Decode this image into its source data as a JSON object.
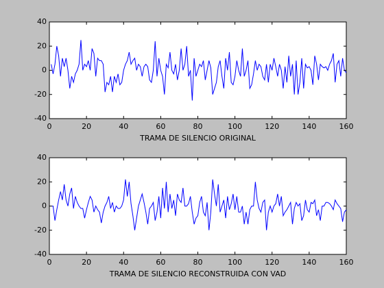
{
  "chart_data": [
    {
      "type": "line",
      "xlabel": "TRAMA DE SILENCIO ORIGINAL",
      "x": [
        1,
        2,
        3,
        4,
        5,
        6,
        7,
        8,
        9,
        10,
        11,
        12,
        13,
        14,
        15,
        16,
        17,
        18,
        19,
        20,
        21,
        22,
        23,
        24,
        25,
        26,
        27,
        28,
        29,
        30,
        31,
        32,
        33,
        34,
        35,
        36,
        37,
        38,
        39,
        40,
        41,
        42,
        43,
        44,
        45,
        46,
        47,
        48,
        49,
        50,
        51,
        52,
        53,
        54,
        55,
        56,
        57,
        58,
        59,
        60,
        61,
        62,
        63,
        64,
        65,
        66,
        67,
        68,
        69,
        70,
        71,
        72,
        73,
        74,
        75,
        76,
        77,
        78,
        79,
        80,
        81,
        82,
        83,
        84,
        85,
        86,
        87,
        88,
        89,
        90,
        91,
        92,
        93,
        94,
        95,
        96,
        97,
        98,
        99,
        100,
        101,
        102,
        103,
        104,
        105,
        106,
        107,
        108,
        109,
        110,
        111,
        112,
        113,
        114,
        115,
        116,
        117,
        118,
        119,
        120,
        121,
        122,
        123,
        124,
        125,
        126,
        127,
        128,
        129,
        130,
        131,
        132,
        133,
        134,
        135,
        136,
        137,
        138,
        139,
        140,
        141,
        142,
        143,
        144,
        145,
        146,
        147,
        148,
        149,
        150,
        151,
        152,
        153,
        154,
        155,
        156,
        157,
        158,
        159,
        160
      ],
      "series": [
        {
          "color": "#0000ff",
          "values": [
            5,
            -3,
            5,
            20,
            12,
            -5,
            10,
            3,
            10,
            0,
            -15,
            -5,
            -10,
            -3,
            0,
            5,
            25,
            0,
            5,
            3,
            8,
            0,
            18,
            14,
            -5,
            10,
            8,
            8,
            5,
            -18,
            -10,
            -12,
            -5,
            -18,
            -5,
            -10,
            -3,
            -12,
            -10,
            0,
            5,
            8,
            15,
            5,
            8,
            10,
            0,
            5,
            3,
            -5,
            3,
            5,
            3,
            -8,
            -10,
            0,
            24,
            -5,
            10,
            0,
            -5,
            -20,
            5,
            2,
            15,
            0,
            -3,
            5,
            -8,
            0,
            18,
            0,
            5,
            20,
            -5,
            0,
            -25,
            10,
            -5,
            0,
            5,
            3,
            8,
            -8,
            0,
            8,
            2,
            -20,
            -15,
            -10,
            3,
            8,
            -5,
            -15,
            10,
            0,
            15,
            -10,
            -12,
            -5,
            8,
            0,
            -5,
            18,
            -5,
            0,
            8,
            -15,
            -12,
            -3,
            8,
            0,
            5,
            3,
            -5,
            -8,
            5,
            -10,
            5,
            0,
            10,
            3,
            -5,
            5,
            0,
            -15,
            3,
            -10,
            12,
            -5,
            5,
            -20,
            8,
            -20,
            -10,
            10,
            -15,
            5,
            2,
            3,
            0,
            -12,
            12,
            5,
            -8,
            5,
            3,
            2,
            3,
            0,
            5,
            8,
            14,
            -10,
            5,
            8,
            -5,
            10,
            0,
            -2
          ]
        }
      ],
      "xlim": [
        0,
        160
      ],
      "xticks": [
        0,
        20,
        40,
        60,
        80,
        100,
        120,
        140,
        160
      ],
      "ylim": [
        -40,
        40
      ],
      "yticks": [
        -40,
        -20,
        0,
        20,
        40
      ]
    },
    {
      "type": "line",
      "xlabel": "TRAMA DE SILENCIO RECONSTRUIDA CON VAD",
      "x": [
        1,
        2,
        3,
        4,
        5,
        6,
        7,
        8,
        9,
        10,
        11,
        12,
        13,
        14,
        15,
        16,
        17,
        18,
        19,
        20,
        21,
        22,
        23,
        24,
        25,
        26,
        27,
        28,
        29,
        30,
        31,
        32,
        33,
        34,
        35,
        36,
        37,
        38,
        39,
        40,
        41,
        42,
        43,
        44,
        45,
        46,
        47,
        48,
        49,
        50,
        51,
        52,
        53,
        54,
        55,
        56,
        57,
        58,
        59,
        60,
        61,
        62,
        63,
        64,
        65,
        66,
        67,
        68,
        69,
        70,
        71,
        72,
        73,
        74,
        75,
        76,
        77,
        78,
        79,
        80,
        81,
        82,
        83,
        84,
        85,
        86,
        87,
        88,
        89,
        90,
        91,
        92,
        93,
        94,
        95,
        96,
        97,
        98,
        99,
        100,
        101,
        102,
        103,
        104,
        105,
        106,
        107,
        108,
        109,
        110,
        111,
        112,
        113,
        114,
        115,
        116,
        117,
        118,
        119,
        120,
        121,
        122,
        123,
        124,
        125,
        126,
        127,
        128,
        129,
        130,
        131,
        132,
        133,
        134,
        135,
        136,
        137,
        138,
        139,
        140,
        141,
        142,
        143,
        144,
        145,
        146,
        147,
        148,
        149,
        150,
        151,
        152,
        153,
        154,
        155,
        156,
        157,
        158,
        159,
        160
      ],
      "series": [
        {
          "color": "#0000ff",
          "values": [
            0,
            0,
            -12,
            -3,
            5,
            12,
            5,
            18,
            5,
            0,
            10,
            15,
            -2,
            8,
            3,
            0,
            -2,
            -2,
            -10,
            -3,
            3,
            8,
            5,
            -5,
            0,
            -3,
            -5,
            -14,
            -5,
            0,
            3,
            8,
            -2,
            3,
            -5,
            0,
            -2,
            -2,
            0,
            5,
            22,
            8,
            20,
            2,
            -8,
            -20,
            -10,
            0,
            5,
            10,
            3,
            -5,
            -15,
            -2,
            0,
            3,
            -12,
            -5,
            8,
            -10,
            15,
            -2,
            20,
            -5,
            10,
            -2,
            5,
            -8,
            10,
            5,
            3,
            15,
            0,
            0,
            2,
            8,
            -5,
            -15,
            -10,
            -8,
            3,
            8,
            -5,
            -8,
            3,
            -20,
            -5,
            22,
            10,
            0,
            18,
            -5,
            0,
            5,
            -10,
            8,
            -3,
            2,
            10,
            -3,
            8,
            -5,
            -5,
            0,
            -15,
            -5,
            -15,
            -3,
            0,
            0,
            20,
            5,
            -2,
            -5,
            3,
            5,
            -20,
            -5,
            0,
            -5,
            0,
            2,
            10,
            0,
            8,
            -8,
            -5,
            -3,
            0,
            3,
            -15,
            -2,
            3,
            0,
            2,
            -12,
            -8,
            5,
            -3,
            -5,
            3,
            2,
            5,
            -8,
            -3,
            -12,
            0,
            0,
            3,
            3,
            2,
            0,
            -3,
            5,
            2,
            0,
            -2,
            -13,
            -5,
            -3
          ]
        }
      ],
      "xlim": [
        0,
        160
      ],
      "xticks": [
        0,
        20,
        40,
        60,
        80,
        100,
        120,
        140,
        160
      ],
      "ylim": [
        -40,
        40
      ],
      "yticks": [
        -40,
        -20,
        0,
        20,
        40
      ]
    }
  ]
}
